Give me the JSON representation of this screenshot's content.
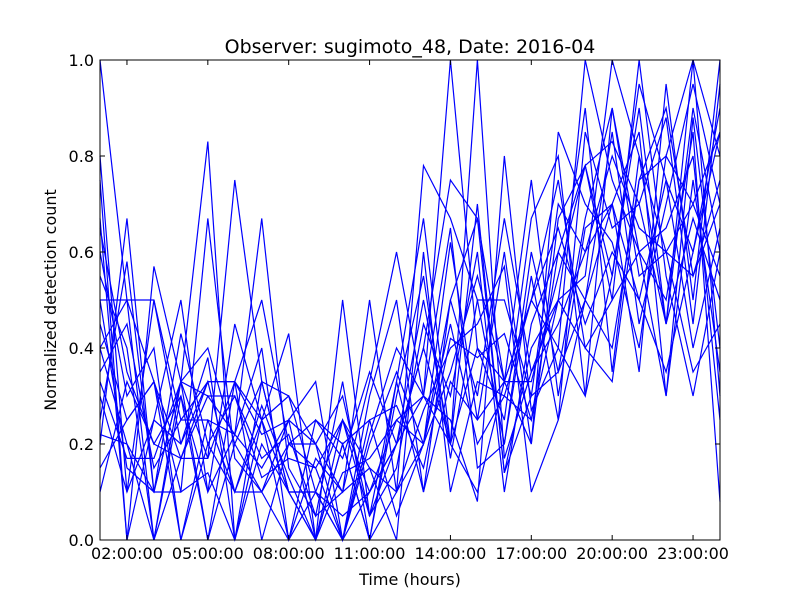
{
  "chart_data": {
    "type": "line",
    "title": "Observer: sugimoto_48, Date: 2016-04",
    "xlabel": "Time (hours)",
    "ylabel": "Normalized detection count",
    "x_unit": "hours",
    "xlim": [
      1,
      24
    ],
    "ylim": [
      0.0,
      1.0
    ],
    "x_ticks": [
      {
        "value": 2,
        "label": "02:00:00"
      },
      {
        "value": 5,
        "label": "05:00:00"
      },
      {
        "value": 8,
        "label": "08:00:00"
      },
      {
        "value": 11,
        "label": "11:00:00"
      },
      {
        "value": 14,
        "label": "14:00:00"
      },
      {
        "value": 17,
        "label": "17:00:00"
      },
      {
        "value": 20,
        "label": "20:00:00"
      },
      {
        "value": 23,
        "label": "23:00:00"
      }
    ],
    "y_ticks": [
      {
        "value": 0.0,
        "label": "0.0"
      },
      {
        "value": 0.2,
        "label": "0.2"
      },
      {
        "value": 0.4,
        "label": "0.4"
      },
      {
        "value": 0.6,
        "label": "0.6"
      },
      {
        "value": 0.8,
        "label": "0.8"
      },
      {
        "value": 1.0,
        "label": "1.0"
      }
    ],
    "grid": false,
    "legend": "none",
    "line_color": "#0000ff",
    "x": [
      1,
      2,
      3,
      4,
      5,
      6,
      7,
      8,
      9,
      10,
      11,
      12,
      13,
      14,
      15,
      16,
      17,
      18,
      19,
      20,
      21,
      22,
      23,
      24
    ],
    "series": [
      {
        "values": [
          1.0,
          0.5,
          0.5,
          0.25,
          0.33,
          0.33,
          0.25,
          0.1,
          0.1,
          0.05,
          0.1,
          0.2,
          0.4,
          0.75,
          0.67,
          0.33,
          0.33,
          0.55,
          0.78,
          0.83,
          0.7,
          0.45,
          0.9,
          0.6
        ]
      },
      {
        "values": [
          0.5,
          0.5,
          0.0,
          0.33,
          0.83,
          0.0,
          0.25,
          0.3,
          0.1,
          0.0,
          0.2,
          0.35,
          0.2,
          0.45,
          0.2,
          0.3,
          0.25,
          0.6,
          0.5,
          0.4,
          0.75,
          0.8,
          1.0,
          0.3
        ]
      },
      {
        "values": [
          0.33,
          0.17,
          0.17,
          0.33,
          0.17,
          0.75,
          0.33,
          0.1,
          0.0,
          0.25,
          0.15,
          0.1,
          0.78,
          0.67,
          0.5,
          0.5,
          0.3,
          0.35,
          0.67,
          0.9,
          0.55,
          0.6,
          0.7,
          0.85
        ]
      },
      {
        "values": [
          0.67,
          0.0,
          0.25,
          0.2,
          0.33,
          0.33,
          0.5,
          0.2,
          0.15,
          0.0,
          0.1,
          0.25,
          0.3,
          1.0,
          0.4,
          0.25,
          0.67,
          0.8,
          0.3,
          0.55,
          0.9,
          0.45,
          0.67,
          0.5
        ]
      },
      {
        "values": [
          0.25,
          0.58,
          0.1,
          0.1,
          0.67,
          0.17,
          0.1,
          0.25,
          0.0,
          0.5,
          0.05,
          0.2,
          0.4,
          0.2,
          1.0,
          0.17,
          0.35,
          0.45,
          0.6,
          0.7,
          0.35,
          0.95,
          0.5,
          1.0
        ]
      },
      {
        "values": [
          0.4,
          0.2,
          0.0,
          0.3,
          0.1,
          0.45,
          0.25,
          0.43,
          0.0,
          0.2,
          0.25,
          0.05,
          0.2,
          0.62,
          0.25,
          0.6,
          0.2,
          0.67,
          0.78,
          0.5,
          0.6,
          0.3,
          0.88,
          0.4
        ]
      },
      {
        "values": [
          0.6,
          0.3,
          0.4,
          0.0,
          0.25,
          0.22,
          0.67,
          0.15,
          0.05,
          0.33,
          0.0,
          0.33,
          0.1,
          0.5,
          0.67,
          0.14,
          0.4,
          0.5,
          0.55,
          1.0,
          0.8,
          0.6,
          0.55,
          0.75
        ]
      },
      {
        "values": [
          0.2,
          0.67,
          0.1,
          0.43,
          0.2,
          0.1,
          0.1,
          0.0,
          0.17,
          0.1,
          0.5,
          0.1,
          0.27,
          0.4,
          0.45,
          0.57,
          0.1,
          0.25,
          0.85,
          0.65,
          0.7,
          0.88,
          0.45,
          0.95
        ]
      },
      {
        "values": [
          0.8,
          0.1,
          0.5,
          0.2,
          0.38,
          0.0,
          0.33,
          0.3,
          0.2,
          0.1,
          0.15,
          0.0,
          0.6,
          0.1,
          0.33,
          0.3,
          0.5,
          0.75,
          0.4,
          0.5,
          1.0,
          0.55,
          0.3,
          0.6
        ]
      },
      {
        "values": [
          0.1,
          0.33,
          0.2,
          0.3,
          0.0,
          0.33,
          0.0,
          0.2,
          0.25,
          0.17,
          0.35,
          0.2,
          0.3,
          0.25,
          0.08,
          0.8,
          0.27,
          0.4,
          1.0,
          0.75,
          0.6,
          0.65,
          0.8,
          0.25
        ]
      },
      {
        "values": [
          0.45,
          0.25,
          0.33,
          0.1,
          0.14,
          0.0,
          0.2,
          0.1,
          0.0,
          0.2,
          0.0,
          0.3,
          0.55,
          0.17,
          0.5,
          0.2,
          0.55,
          0.25,
          0.5,
          0.85,
          0.45,
          0.7,
          0.95,
          0.7
        ]
      },
      {
        "values": [
          0.55,
          0.4,
          0.0,
          0.17,
          0.3,
          0.22,
          0.15,
          0.25,
          0.33,
          0.0,
          0.3,
          0.5,
          0.1,
          0.33,
          0.25,
          0.33,
          0.75,
          0.3,
          0.65,
          0.7,
          0.5,
          0.35,
          0.6,
          0.9
        ]
      },
      {
        "values": [
          0.3,
          0.1,
          0.25,
          0.5,
          0.1,
          0.22,
          0.4,
          0.0,
          0.1,
          0.25,
          0.05,
          0.15,
          0.45,
          0.3,
          0.6,
          0.1,
          0.45,
          0.6,
          0.78,
          0.55,
          0.95,
          0.75,
          0.4,
          0.65
        ]
      },
      {
        "values": [
          0.75,
          0.0,
          0.57,
          0.33,
          0.0,
          0.2,
          0.1,
          0.2,
          0.2,
          0.0,
          0.22,
          0.4,
          0.3,
          0.2,
          0.4,
          0.33,
          0.2,
          0.85,
          0.7,
          0.62,
          0.4,
          0.8,
          0.7,
          0.55
        ]
      },
      {
        "values": [
          0.35,
          0.45,
          0.15,
          0.25,
          0.25,
          0.1,
          0.28,
          0.13,
          0.0,
          0.14,
          0.17,
          0.25,
          0.2,
          0.5,
          0.3,
          0.67,
          0.35,
          0.5,
          0.9,
          0.35,
          0.8,
          0.45,
          1.0,
          0.8
        ]
      },
      {
        "values": [
          0.5,
          0.15,
          0.1,
          0.33,
          0.3,
          0.3,
          0.13,
          0.17,
          0.15,
          0.25,
          0.1,
          0.2,
          0.5,
          0.2,
          0.7,
          0.14,
          0.3,
          0.7,
          0.6,
          0.8,
          0.65,
          0.6,
          0.35,
          0.45
        ]
      },
      {
        "values": [
          0.15,
          0.25,
          0.33,
          0.0,
          0.2,
          0.3,
          0.17,
          0.22,
          0.05,
          0.1,
          0.33,
          0.6,
          0.3,
          0.65,
          0.15,
          0.2,
          0.6,
          0.35,
          0.5,
          0.7,
          0.85,
          0.3,
          0.75,
          0.35
        ]
      },
      {
        "values": [
          0.65,
          0.35,
          0.2,
          0.17,
          0.33,
          0.1,
          0.25,
          0.0,
          0.25,
          0.2,
          0.0,
          0.1,
          0.2,
          0.35,
          0.55,
          0.33,
          0.5,
          0.65,
          0.45,
          0.6,
          0.5,
          0.75,
          0.6,
          0.85
        ]
      },
      {
        "values": [
          0.4,
          0.5,
          0.33,
          0.17,
          0.17,
          0.33,
          0.22,
          0.25,
          0.2,
          0.3,
          0.05,
          0.33,
          0.67,
          0.2,
          0.1,
          0.33,
          0.5,
          0.4,
          0.3,
          0.9,
          0.6,
          0.5,
          0.85,
          0.08
        ]
      },
      {
        "values": [
          0.22,
          0.2,
          0.1,
          0.33,
          0.4,
          0.2,
          0.33,
          0.1,
          0.1,
          0.0,
          0.25,
          0.28,
          0.15,
          0.42,
          0.38,
          0.43,
          0.25,
          0.5,
          0.4,
          0.33,
          0.75,
          0.9,
          0.55,
          0.7
        ]
      }
    ]
  }
}
